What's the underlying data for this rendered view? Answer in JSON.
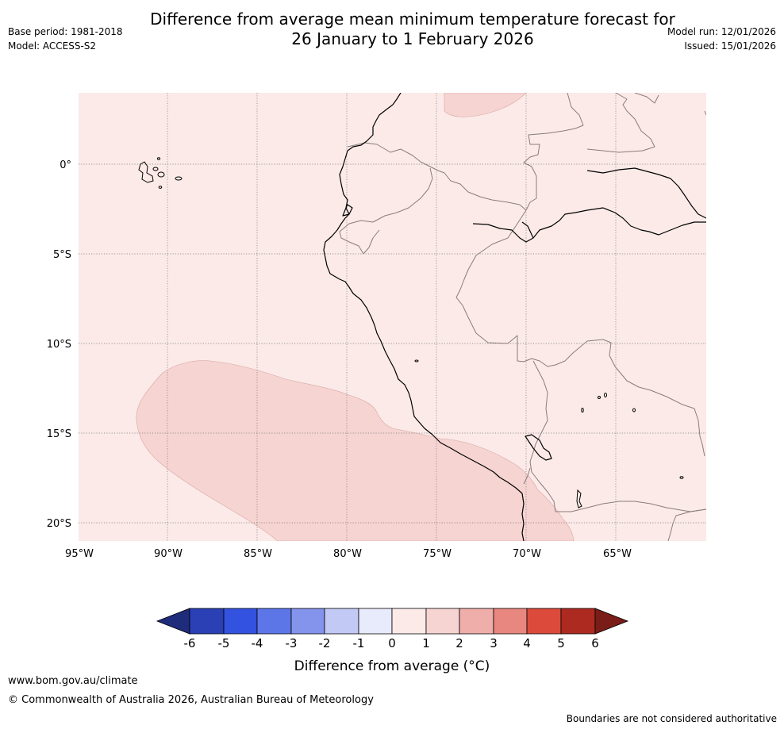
{
  "header": {
    "title_line1": "Difference from average mean minimum temperature forecast for",
    "title_line2": "26 January to 1 February 2026",
    "base_period": "Base period: 1981-2018",
    "model": "Model: ACCESS-S2",
    "model_run": "Model run: 12/01/2026",
    "issued": "Issued: 15/01/2026"
  },
  "map": {
    "lat_labels": [
      "0°",
      "5°S",
      "10°S",
      "15°S",
      "20°S"
    ],
    "lon_labels": [
      "95°W",
      "90°W",
      "85°W",
      "80°W",
      "75°W",
      "70°W",
      "65°W"
    ],
    "background_category": "0 to 1",
    "anomaly_region_category": "1 to 2"
  },
  "legend": {
    "ticks": [
      "-6",
      "-5",
      "-4",
      "-3",
      "-2",
      "-1",
      "0",
      "1",
      "2",
      "3",
      "4",
      "5",
      "6"
    ],
    "colors": [
      "#1f2c7c",
      "#2a40b4",
      "#3352e0",
      "#5c76e8",
      "#8494ec",
      "#c2c9f4",
      "#e8ebfb",
      "#fbeae8",
      "#f6d4d2",
      "#efaeaa",
      "#e8877f",
      "#dc4a3c",
      "#ad2a20",
      "#7a1c17"
    ],
    "label": "Difference from average (°C)"
  },
  "footer": {
    "url": "www.bom.gov.au/climate",
    "copyright": "© Commonwealth of Australia 2026, Australian Bureau of Meteorology",
    "note": "Boundaries are not considered authoritative"
  }
}
